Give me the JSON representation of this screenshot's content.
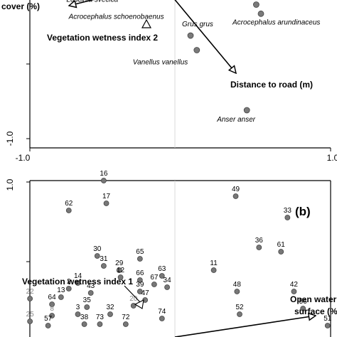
{
  "chart_data": [
    {
      "type": "scatter",
      "panel": "a",
      "xlim": [
        -1.0,
        1.0
      ],
      "tick_labels_x": [
        "-1.0",
        "1.0"
      ],
      "tick_labels_y": [
        "-1.0"
      ],
      "points": [
        {
          "name": "Luscinia svecica",
          "x": -0.33,
          "y": 1.0
        },
        {
          "name": "Acrocephalus schoenobaenus",
          "x": -0.27,
          "y": 0.98
        },
        {
          "name": "Locustella luscinioides",
          "x": 0.52,
          "y": 0.93
        },
        {
          "name": "Acrocephalus arundinaceus",
          "x": 0.55,
          "y": 0.88
        },
        {
          "name": "Grus grus",
          "x": 0.1,
          "y": 0.76
        },
        {
          "name": "Vanellus vanellus",
          "x": 0.14,
          "y": 0.68
        },
        {
          "name": "Anser anser",
          "x": 0.46,
          "y": 0.35
        }
      ],
      "supplementary_vars": [
        {
          "name": "Vegetation wetness index 2"
        }
      ],
      "vectors": [
        {
          "name": "cover (%)",
          "direction": "upper-left"
        },
        {
          "name": "Distance to road (m)",
          "direction": "lower-right"
        }
      ]
    },
    {
      "type": "scatter",
      "panel": "b",
      "panel_label": "(b)",
      "tick_labels_y": [
        "1.0"
      ],
      "points": [
        {
          "label": "16",
          "x": -0.55,
          "y": 0.93
        },
        {
          "label": "17",
          "x": -0.53,
          "y": 0.77
        },
        {
          "label": "62",
          "x": -0.82,
          "y": 0.72
        },
        {
          "label": "49",
          "x": 0.47,
          "y": 0.82
        },
        {
          "label": "33",
          "x": 0.87,
          "y": 0.67
        },
        {
          "label": "36",
          "x": 0.65,
          "y": 0.46
        },
        {
          "label": "61",
          "x": 0.82,
          "y": 0.43
        },
        {
          "label": "30",
          "x": -0.6,
          "y": 0.4
        },
        {
          "label": "65",
          "x": -0.27,
          "y": 0.38
        },
        {
          "label": "31",
          "x": -0.55,
          "y": 0.33
        },
        {
          "label": "29",
          "x": -0.43,
          "y": 0.3
        },
        {
          "label": "11",
          "x": 0.3,
          "y": 0.3
        },
        {
          "label": "12",
          "x": -0.42,
          "y": 0.25
        },
        {
          "label": "63",
          "x": -0.1,
          "y": 0.26
        },
        {
          "label": "66",
          "x": -0.27,
          "y": 0.23
        },
        {
          "label": "67",
          "x": -0.16,
          "y": 0.2
        },
        {
          "label": "34",
          "x": -0.06,
          "y": 0.18
        },
        {
          "label": "14",
          "x": -0.75,
          "y": 0.21
        },
        {
          "label": "2",
          "x": -0.82,
          "y": 0.17
        },
        {
          "label": "43",
          "x": -0.65,
          "y": 0.14
        },
        {
          "label": "39",
          "x": -0.27,
          "y": 0.15
        },
        {
          "label": "48",
          "x": 0.48,
          "y": 0.15
        },
        {
          "label": "42",
          "x": 0.92,
          "y": 0.15
        },
        {
          "label": "13",
          "x": -0.88,
          "y": 0.11
        },
        {
          "label": "47",
          "x": -0.23,
          "y": 0.09
        },
        {
          "label": "22",
          "x": -1.12,
          "y": 0.1
        },
        {
          "label": "64",
          "x": -0.95,
          "y": 0.06
        },
        {
          "label": "35",
          "x": -0.68,
          "y": 0.04
        },
        {
          "label": "20",
          "x": -0.32,
          "y": 0.05
        },
        {
          "label": "56",
          "x": 0.99,
          "y": 0.03
        },
        {
          "label": "8",
          "x": -0.95,
          "y": -0.02
        },
        {
          "label": "3",
          "x": -0.75,
          "y": -0.01
        },
        {
          "label": "32",
          "x": -0.5,
          "y": -0.01
        },
        {
          "label": "52",
          "x": 0.5,
          "y": -0.01
        },
        {
          "label": "25",
          "x": -1.12,
          "y": -0.06
        },
        {
          "label": "74",
          "x": -0.1,
          "y": -0.04
        },
        {
          "label": "57",
          "x": -0.98,
          "y": -0.09
        },
        {
          "label": "38",
          "x": -0.7,
          "y": -0.08
        },
        {
          "label": "73",
          "x": -0.58,
          "y": -0.08
        },
        {
          "label": "72",
          "x": -0.38,
          "y": -0.08
        },
        {
          "label": "51",
          "x": 1.18,
          "y": -0.09
        }
      ],
      "supplementary_vars": [
        {
          "name": "Vegetation wetness index 1"
        }
      ],
      "vectors": [
        {
          "name_line1": "Open water",
          "name_line2": "surface (%)",
          "direction": "right"
        }
      ]
    }
  ]
}
